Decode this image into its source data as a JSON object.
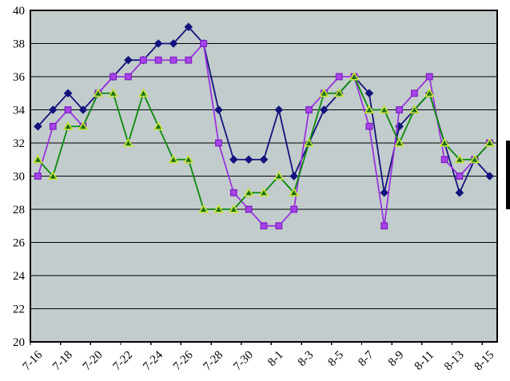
{
  "chart_data": {
    "type": "line",
    "title": "",
    "xlabel": "",
    "ylabel": "",
    "grid": "horizontal-black-lines",
    "plot_bg_color": "#c2cccc",
    "grid_color": "#000000",
    "legend": {
      "position": "right-edge",
      "clipped": true,
      "visible_box_color": "#000000"
    },
    "y_axis": {
      "min": 20,
      "max": 40,
      "step": 2,
      "tick_labels": [
        "20",
        "22",
        "24",
        "26",
        "28",
        "30",
        "32",
        "34",
        "36",
        "38",
        "40"
      ]
    },
    "x_tick_labels": [
      "7-16",
      "7-18",
      "7-20",
      "7-22",
      "7-24",
      "7-26",
      "7-28",
      "7-30",
      "8-1",
      "8-3",
      "8-5",
      "8-7",
      "8-9",
      "8-11",
      "8-13",
      "8-15"
    ],
    "x_categories": [
      "7-16",
      "7-17",
      "7-18",
      "7-19",
      "7-20",
      "7-21",
      "7-22",
      "7-23",
      "7-24",
      "7-25",
      "7-26",
      "7-27",
      "7-28",
      "7-29",
      "7-30",
      "7-31",
      "8-1",
      "8-2",
      "8-3",
      "8-4",
      "8-5",
      "8-6",
      "8-7",
      "8-8",
      "8-9",
      "8-10",
      "8-11",
      "8-12",
      "8-13",
      "8-14",
      "8-15"
    ],
    "series": [
      {
        "name": "series-navy-diamond",
        "marker": "diamond",
        "line_color": "#13137c",
        "marker_fill": "#13137c",
        "marker_border": "#13137c",
        "values": [
          33,
          34,
          35,
          34,
          35,
          36,
          37,
          37,
          38,
          38,
          39,
          38,
          34,
          31,
          31,
          31,
          34,
          30,
          32,
          34,
          35,
          36,
          35,
          29,
          33,
          34,
          35,
          32,
          29,
          31,
          30
        ]
      },
      {
        "name": "series-violet-square",
        "marker": "square",
        "line_color": "#9933dd",
        "marker_fill": "#a843e8",
        "marker_border": "#7d1fc4",
        "values": [
          30,
          33,
          34,
          33,
          35,
          36,
          36,
          37,
          37,
          37,
          37,
          38,
          32,
          29,
          28,
          27,
          27,
          28,
          34,
          35,
          36,
          36,
          33,
          27,
          34,
          35,
          36,
          31,
          30,
          31,
          32
        ]
      },
      {
        "name": "series-green-triangle",
        "marker": "triangle",
        "line_color": "#0a8a0a",
        "marker_fill": "#186e18",
        "marker_border": "#c6e23c",
        "values": [
          31,
          30,
          33,
          33,
          35,
          35,
          32,
          35,
          33,
          31,
          31,
          28,
          28,
          28,
          29,
          29,
          30,
          29,
          32,
          35,
          35,
          36,
          34,
          34,
          32,
          34,
          35,
          32,
          31,
          31,
          32
        ]
      }
    ]
  }
}
